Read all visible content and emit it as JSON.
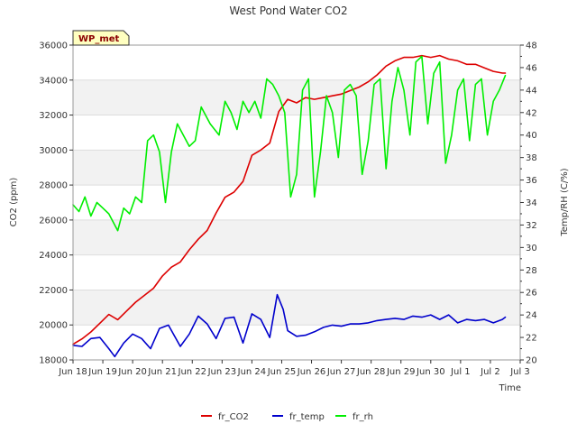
{
  "chart_data": {
    "type": "line",
    "title": "West Pond Water CO2",
    "badge": "WP_met",
    "xlabel": "Time",
    "ylabel_left": "CO2 (ppm)",
    "ylabel_right": "Temp/RH (C/%)",
    "x_ticks": [
      "Jun 18",
      "Jun 19",
      "Jun 20",
      "Jun 21",
      "Jun 22",
      "Jun 23",
      "Jun 24",
      "Jun 25",
      "Jun 26",
      "Jun 27",
      "Jun 28",
      "Jun 29",
      "Jun 30",
      "Jul 1",
      "Jul 2",
      "Jul 3"
    ],
    "xlim": [
      0,
      15
    ],
    "ylim_left": [
      18000,
      36000
    ],
    "yticks_left": [
      18000,
      20000,
      22000,
      24000,
      26000,
      28000,
      30000,
      32000,
      34000,
      36000
    ],
    "ylim_right": [
      20,
      48
    ],
    "yticks_right": [
      20,
      22,
      24,
      26,
      28,
      30,
      32,
      34,
      36,
      38,
      40,
      42,
      44,
      46,
      48
    ],
    "grid": "horizontal bands",
    "legend_position": "bottom",
    "series": [
      {
        "name": "fr_CO2",
        "axis": "left",
        "color": "#dd0000",
        "x": [
          0.0,
          0.3,
          0.6,
          0.9,
          1.2,
          1.5,
          1.8,
          2.1,
          2.4,
          2.7,
          3.0,
          3.3,
          3.6,
          3.9,
          4.2,
          4.5,
          4.8,
          5.1,
          5.4,
          5.7,
          6.0,
          6.3,
          6.6,
          6.9,
          7.2,
          7.5,
          7.8,
          8.1,
          8.4,
          8.7,
          9.0,
          9.3,
          9.6,
          9.9,
          10.2,
          10.5,
          10.8,
          11.1,
          11.4,
          11.7,
          12.0,
          12.3,
          12.6,
          12.9,
          13.2,
          13.5,
          13.8,
          14.1,
          14.4,
          14.5
        ],
        "y": [
          18900,
          19200,
          19600,
          20100,
          20600,
          20300,
          20800,
          21300,
          21700,
          22100,
          22800,
          23300,
          23600,
          24300,
          24900,
          25400,
          26400,
          27300,
          27600,
          28200,
          29700,
          30000,
          30400,
          32200,
          32900,
          32700,
          33000,
          32900,
          33000,
          33100,
          33200,
          33400,
          33600,
          33900,
          34300,
          34800,
          35100,
          35300,
          35300,
          35400,
          35300,
          35400,
          35200,
          35100,
          34900,
          34900,
          34700,
          34500,
          34400,
          34400
        ]
      },
      {
        "name": "fr_temp",
        "axis": "right",
        "color": "#0000cc",
        "x": [
          0.0,
          0.3,
          0.6,
          0.9,
          1.2,
          1.4,
          1.7,
          2.0,
          2.3,
          2.6,
          2.9,
          3.2,
          3.6,
          3.9,
          4.2,
          4.5,
          4.8,
          5.1,
          5.4,
          5.7,
          6.0,
          6.3,
          6.6,
          6.85,
          7.05,
          7.2,
          7.5,
          7.8,
          8.1,
          8.4,
          8.7,
          9.0,
          9.3,
          9.6,
          9.9,
          10.2,
          10.5,
          10.8,
          11.1,
          11.4,
          11.7,
          12.0,
          12.3,
          12.6,
          12.9,
          13.2,
          13.5,
          13.8,
          14.1,
          14.4,
          14.5
        ],
        "y": [
          21.3,
          21.2,
          21.9,
          22.0,
          21.0,
          20.3,
          21.5,
          22.3,
          21.9,
          21.0,
          22.8,
          23.1,
          21.2,
          22.3,
          23.9,
          23.2,
          21.9,
          23.7,
          23.8,
          21.5,
          24.1,
          23.6,
          22.0,
          25.8,
          24.5,
          22.6,
          22.1,
          22.2,
          22.5,
          22.9,
          23.1,
          23.0,
          23.2,
          23.2,
          23.3,
          23.5,
          23.6,
          23.7,
          23.6,
          23.9,
          23.8,
          24.0,
          23.6,
          24.0,
          23.3,
          23.6,
          23.5,
          23.6,
          23.3,
          23.6,
          23.8
        ]
      },
      {
        "name": "fr_rh",
        "axis": "right",
        "color": "#00ee00",
        "x": [
          0.0,
          0.2,
          0.4,
          0.6,
          0.8,
          1.0,
          1.2,
          1.5,
          1.7,
          1.9,
          2.1,
          2.3,
          2.5,
          2.7,
          2.9,
          3.1,
          3.3,
          3.5,
          3.7,
          3.9,
          4.1,
          4.3,
          4.6,
          4.9,
          5.1,
          5.3,
          5.5,
          5.7,
          5.9,
          6.1,
          6.3,
          6.5,
          6.7,
          6.9,
          7.1,
          7.3,
          7.5,
          7.7,
          7.9,
          8.1,
          8.3,
          8.5,
          8.7,
          8.9,
          9.1,
          9.3,
          9.5,
          9.7,
          9.9,
          10.1,
          10.3,
          10.5,
          10.7,
          10.9,
          11.1,
          11.3,
          11.5,
          11.7,
          11.9,
          12.1,
          12.3,
          12.5,
          12.7,
          12.9,
          13.1,
          13.3,
          13.5,
          13.7,
          13.9,
          14.1,
          14.3,
          14.5
        ],
        "y": [
          33.8,
          33.2,
          34.5,
          32.8,
          34.0,
          33.5,
          33.0,
          31.5,
          33.5,
          33.0,
          34.5,
          34.0,
          39.5,
          40.0,
          38.5,
          34.0,
          38.5,
          41.0,
          40.0,
          39.0,
          39.5,
          42.5,
          41.0,
          40.0,
          43.0,
          42.0,
          40.5,
          43.0,
          42.0,
          43.0,
          41.5,
          45.0,
          44.5,
          43.5,
          42.0,
          34.5,
          36.5,
          44.0,
          45.0,
          34.5,
          38.5,
          43.5,
          42.0,
          38.0,
          44.0,
          44.5,
          43.5,
          36.5,
          39.5,
          44.5,
          45.0,
          37.0,
          43.0,
          46.0,
          44.0,
          40.0,
          46.5,
          47.0,
          41.0,
          45.5,
          46.5,
          37.5,
          40.0,
          44.0,
          45.0,
          39.5,
          44.5,
          45.0,
          40.0,
          43.0,
          44.0,
          45.3
        ]
      }
    ]
  }
}
